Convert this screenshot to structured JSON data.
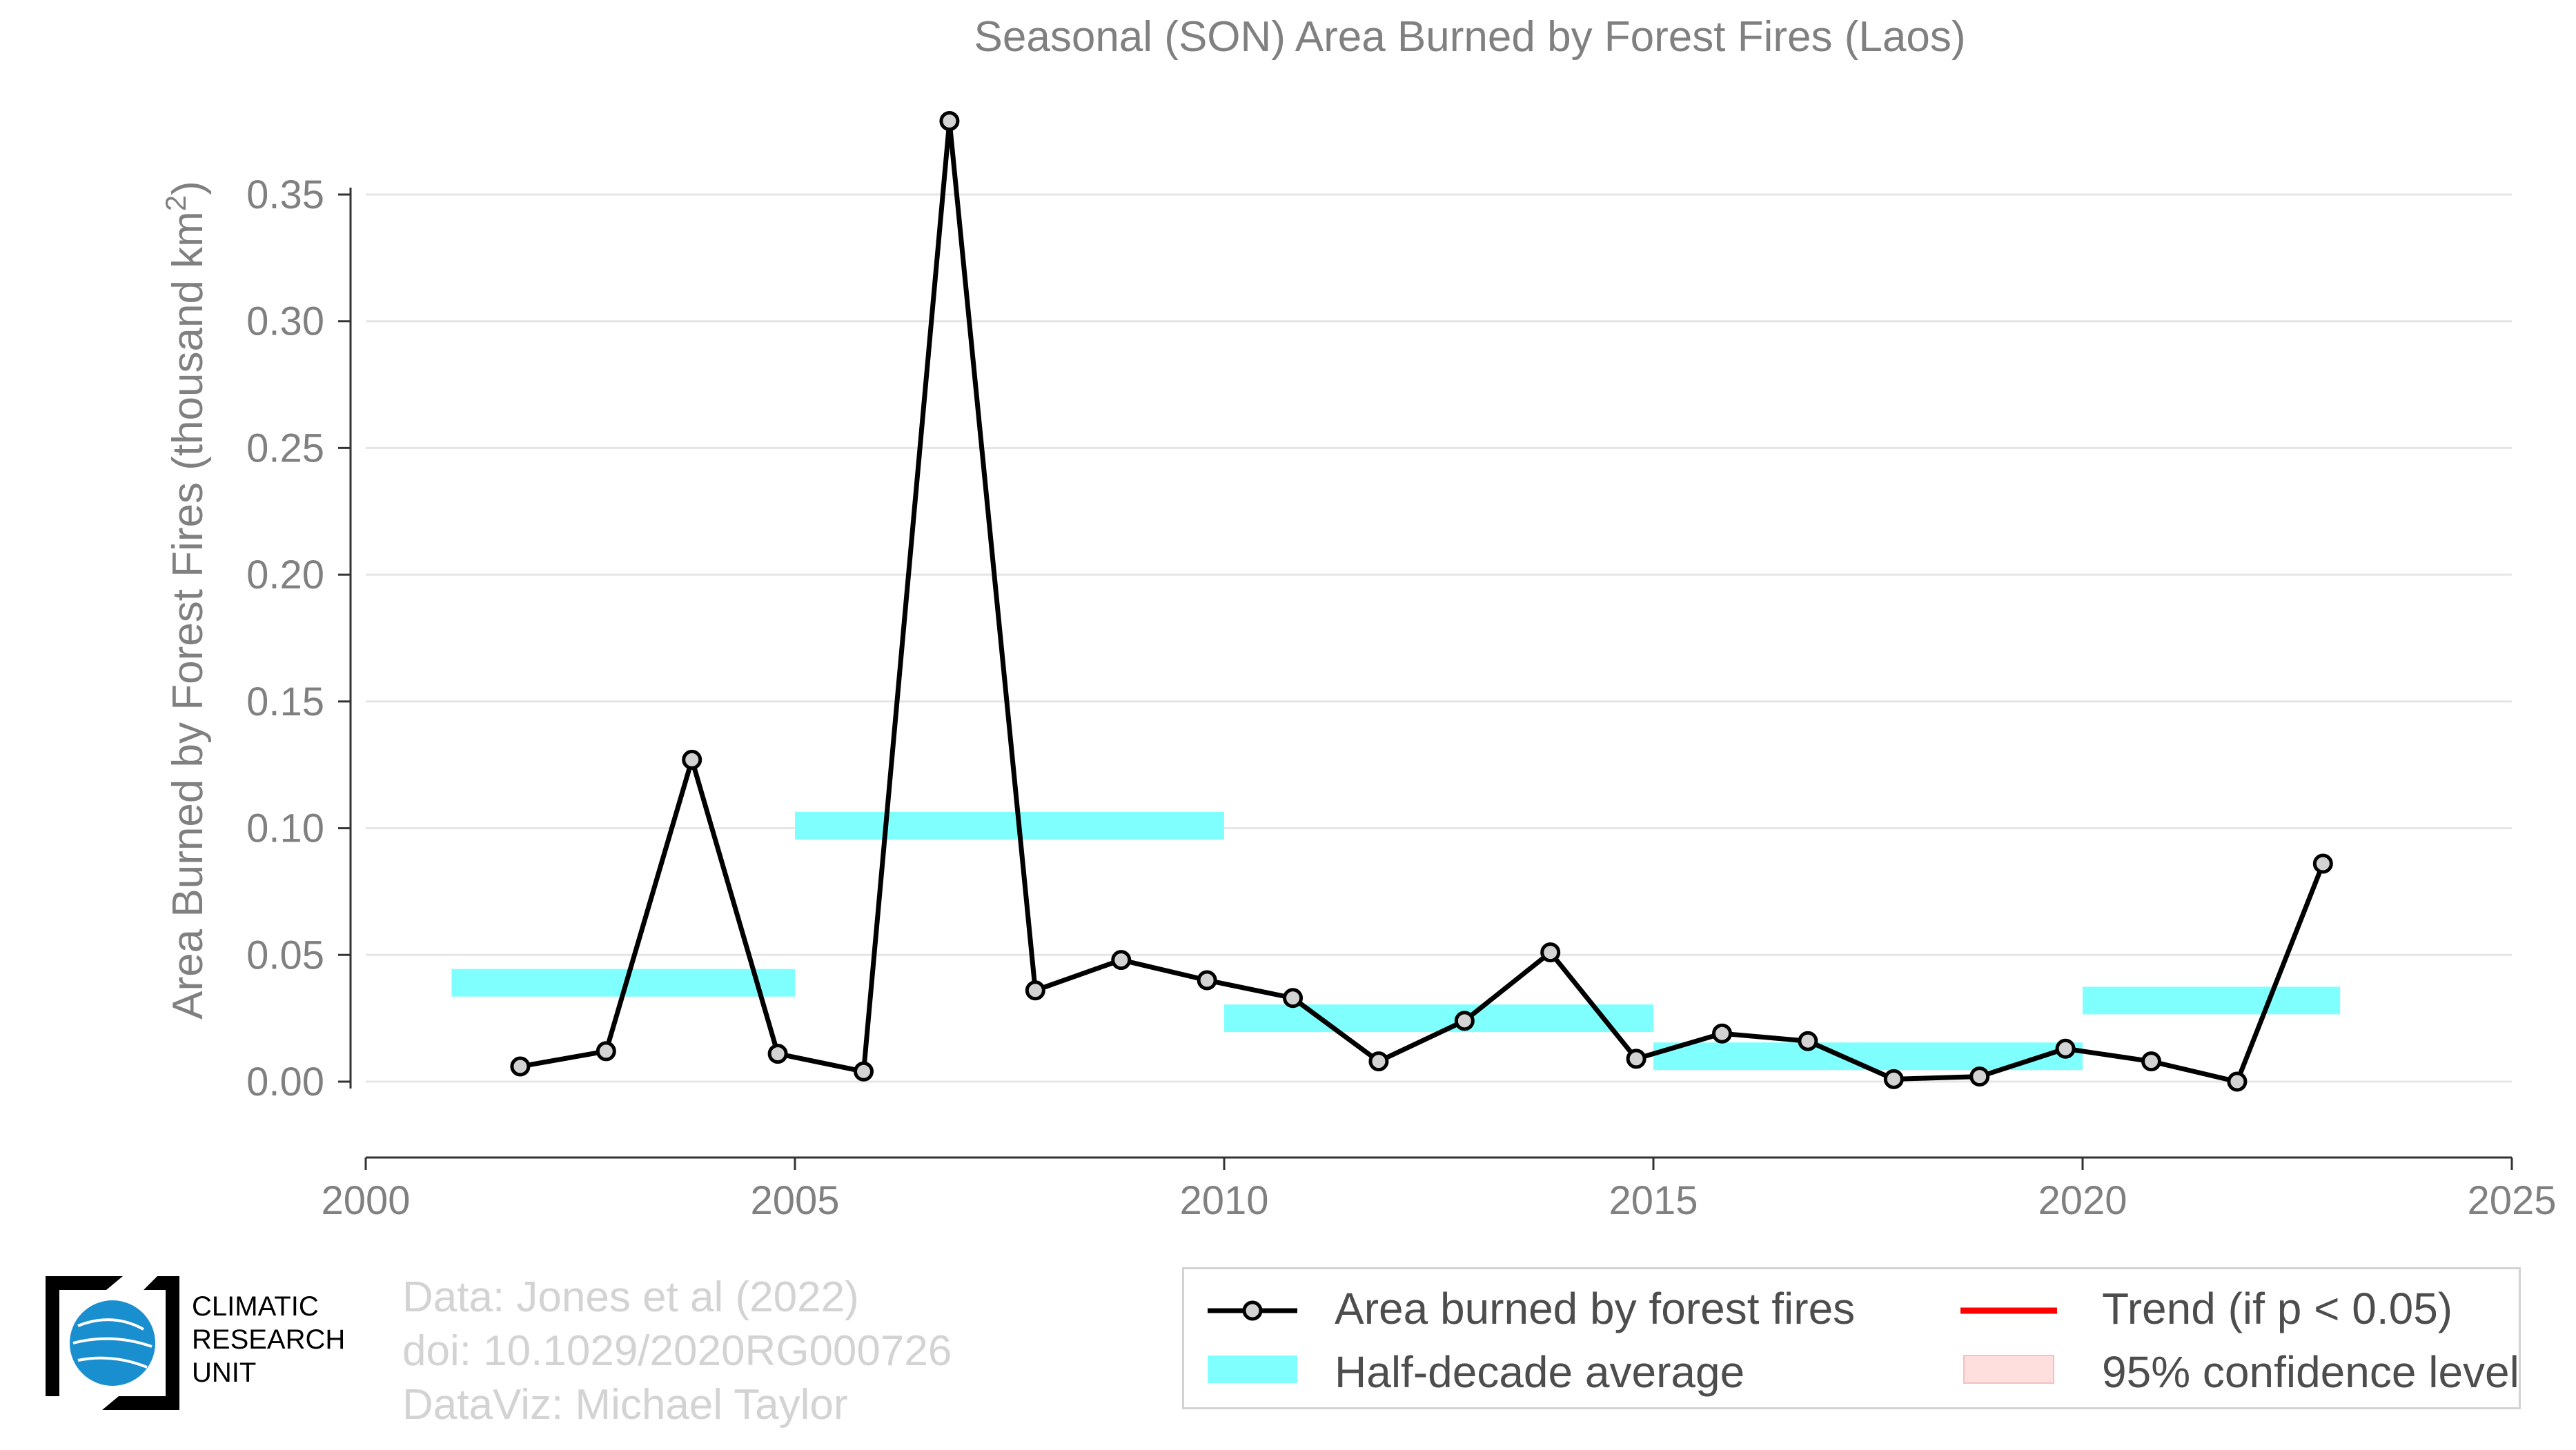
{
  "chart_data": {
    "type": "line",
    "title": "Seasonal (SON) Area Burned by Forest Fires (Laos)",
    "ylabel": "Area Burned by Forest Fires (thousand km",
    "ylabel_sup": "2",
    "ylabel_close": ")",
    "xlim": [
      2000,
      2025
    ],
    "ylim": [
      -0.03,
      0.38
    ],
    "x_ticks": [
      2000,
      2005,
      2010,
      2015,
      2020,
      2025
    ],
    "x_tick_labels": [
      "2000",
      "2005",
      "2010",
      "2015",
      "2020",
      "2025"
    ],
    "y_ticks": [
      0.0,
      0.05,
      0.1,
      0.15,
      0.2,
      0.25,
      0.3,
      0.35
    ],
    "y_tick_labels": [
      "0.00",
      "0.05",
      "0.10",
      "0.15",
      "0.20",
      "0.25",
      "0.30",
      "0.35"
    ],
    "grid": true,
    "series": [
      {
        "name": "Area burned by forest fires",
        "color": "#000000",
        "marker_fill": "#d3d3d3",
        "x": [
          2001.8,
          2002.8,
          2003.8,
          2004.8,
          2005.8,
          2006.8,
          2007.8,
          2008.8,
          2009.8,
          2010.8,
          2011.8,
          2012.8,
          2013.8,
          2014.8,
          2015.8,
          2016.8,
          2017.8,
          2018.8,
          2019.8,
          2020.8,
          2021.8,
          2022.8
        ],
        "y": [
          0.006,
          0.012,
          0.127,
          0.011,
          0.004,
          0.379,
          0.036,
          0.048,
          0.04,
          0.033,
          0.008,
          0.024,
          0.051,
          0.009,
          0.019,
          0.016,
          0.001,
          0.002,
          0.013,
          0.008,
          0.0,
          0.086
        ]
      }
    ],
    "half_decade_average": {
      "name": "Half-decade average",
      "color": "#80ffff",
      "segments": [
        {
          "x0": 2001,
          "x1": 2005,
          "y": 0.039
        },
        {
          "x0": 2005,
          "x1": 2010,
          "y": 0.101
        },
        {
          "x0": 2010,
          "x1": 2015,
          "y": 0.025
        },
        {
          "x0": 2015,
          "x1": 2020,
          "y": 0.01
        },
        {
          "x0": 2020,
          "x1": 2023,
          "y": 0.032
        }
      ]
    },
    "legend": {
      "placement": "bottom-right",
      "items": [
        {
          "label": "Area burned by forest fires",
          "key": "line-marker"
        },
        {
          "label": "Trend (if p < 0.05)",
          "key": "red-line",
          "color": "#ff0000"
        },
        {
          "label": "Half-decade average",
          "key": "cyan-band"
        },
        {
          "label": "95% confidence level",
          "key": "pink-band",
          "color": "#ffdede"
        }
      ]
    }
  },
  "credits": {
    "line1": "Data: Jones et al (2022)",
    "line2": "doi: 10.1029/2020RG000726",
    "line3": "DataViz: Michael Taylor"
  },
  "logo": {
    "line1": "CLIMATIC",
    "line2": "RESEARCH",
    "line3": "UNIT",
    "globe_color": "#1a8fd0"
  }
}
